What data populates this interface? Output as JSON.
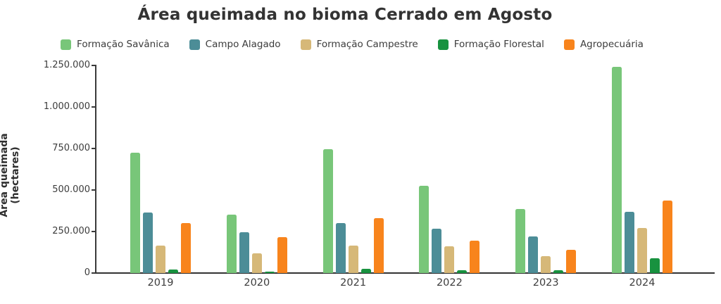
{
  "chart_data": {
    "type": "bar",
    "title": "Área queimada no bioma Cerrado em Agosto",
    "ylabel": "Área queimada (hectares)",
    "xlabel": "",
    "categories": [
      "2019",
      "2020",
      "2021",
      "2022",
      "2023",
      "2024"
    ],
    "series": [
      {
        "name": "Formação Savânica",
        "color": "#78c679",
        "values": [
          725000,
          350000,
          745000,
          525000,
          385000,
          1240000
        ]
      },
      {
        "name": "Campo Alagado",
        "color": "#4c8d97",
        "values": [
          365000,
          245000,
          300000,
          265000,
          220000,
          370000
        ]
      },
      {
        "name": "Formação Campestre",
        "color": "#d6b878",
        "values": [
          165000,
          120000,
          165000,
          160000,
          100000,
          270000
        ]
      },
      {
        "name": "Formação Florestal",
        "color": "#18923f",
        "values": [
          20000,
          10000,
          25000,
          15000,
          15000,
          90000
        ]
      },
      {
        "name": "Agropecuária",
        "color": "#f8841c",
        "values": [
          300000,
          215000,
          330000,
          195000,
          140000,
          435000
        ]
      }
    ],
    "ylim": [
      0,
      1250000
    ],
    "yticks": [
      {
        "value": 0,
        "label": "0"
      },
      {
        "value": 250000,
        "label": "250.000"
      },
      {
        "value": 500000,
        "label": "500.000"
      },
      {
        "value": 750000,
        "label": "750.000"
      },
      {
        "value": 1000000,
        "label": "1.000.000"
      },
      {
        "value": 1250000,
        "label": "1.250.000"
      }
    ],
    "legend_position": "top",
    "grid": false,
    "axis_color": "#3a3a3a",
    "text_color": "#3c3c3c",
    "title_color": "#333333"
  }
}
